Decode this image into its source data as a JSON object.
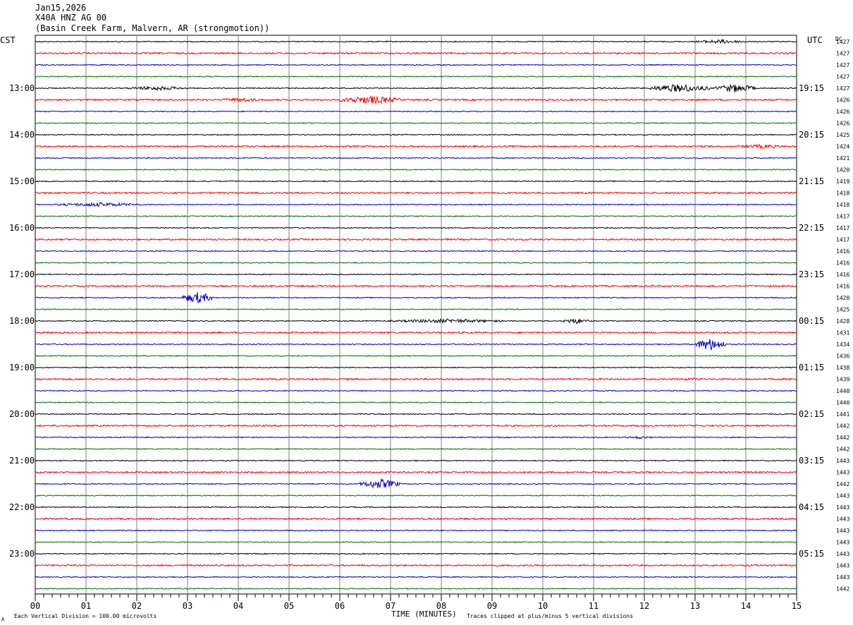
{
  "header": {
    "date": "Jan15,2026",
    "station": "X40A HNZ AG 00",
    "location": "(Basin Creek Farm, Malvern, AR (strongmotion))"
  },
  "chart_data": {
    "type": "line",
    "left_timezone": "CST",
    "right_timezone": "UTC",
    "dc_label": "DC",
    "xlabel": "TIME (MINUTES)",
    "xlim": [
      0,
      15
    ],
    "x_ticks": [
      "00",
      "01",
      "02",
      "03",
      "04",
      "05",
      "06",
      "07",
      "08",
      "09",
      "10",
      "11",
      "12",
      "13",
      "14",
      "15"
    ],
    "left_hour_labels": [
      "13:00",
      "14:00",
      "15:00",
      "16:00",
      "17:00",
      "18:00",
      "19:00",
      "20:00",
      "21:00",
      "22:00",
      "23:00"
    ],
    "right_hour_labels": [
      "19:15",
      "20:15",
      "21:15",
      "22:15",
      "23:15",
      "00:15",
      "01:15",
      "02:15",
      "03:15",
      "04:15",
      "05:15"
    ],
    "trace_colors": [
      "#000000",
      "#ff0000",
      "#0000cc",
      "#007000"
    ],
    "dc_values": [
      1427,
      1427,
      1427,
      1427,
      1427,
      1426,
      1426,
      1426,
      1425,
      1424,
      1421,
      1420,
      1419,
      1418,
      1418,
      1417,
      1417,
      1417,
      1416,
      1416,
      1416,
      1416,
      1420,
      1425,
      1428,
      1431,
      1434,
      1436,
      1438,
      1439,
      1440,
      1440,
      1441,
      1442,
      1442,
      1442,
      1443,
      1443,
      1442,
      1443,
      1443,
      1443,
      1443,
      1443,
      1443,
      1443,
      1443,
      1442
    ],
    "events": [
      {
        "trace": 0,
        "start_min": 13.0,
        "end_min": 14.0,
        "amp": 3
      },
      {
        "trace": 4,
        "start_min": 1.8,
        "end_min": 3.0,
        "amp": 3
      },
      {
        "trace": 4,
        "start_min": 12.1,
        "end_min": 13.3,
        "amp": 6
      },
      {
        "trace": 4,
        "start_min": 13.4,
        "end_min": 14.2,
        "amp": 6
      },
      {
        "trace": 5,
        "start_min": 3.6,
        "end_min": 4.5,
        "amp": 3
      },
      {
        "trace": 5,
        "start_min": 6.0,
        "end_min": 7.2,
        "amp": 6
      },
      {
        "trace": 9,
        "start_min": 13.8,
        "end_min": 14.8,
        "amp": 3
      },
      {
        "trace": 14,
        "start_min": 0.4,
        "end_min": 2.1,
        "amp": 3
      },
      {
        "trace": 22,
        "start_min": 2.9,
        "end_min": 3.5,
        "amp": 8
      },
      {
        "trace": 24,
        "start_min": 7.0,
        "end_min": 9.2,
        "amp": 3
      },
      {
        "trace": 24,
        "start_min": 10.4,
        "end_min": 10.9,
        "amp": 4
      },
      {
        "trace": 26,
        "start_min": 13.0,
        "end_min": 13.6,
        "amp": 9
      },
      {
        "trace": 29,
        "start_min": 12.6,
        "end_min": 13.3,
        "amp": 2
      },
      {
        "trace": 34,
        "start_min": 11.6,
        "end_min": 12.2,
        "amp": 2
      },
      {
        "trace": 38,
        "start_min": 6.4,
        "end_min": 7.2,
        "amp": 7
      }
    ],
    "footnote_left": "Each Vertical Division =  100.00 microvolts",
    "footnote_right": "Traces clipped at plus/minus 5 vertical divisions",
    "corner_mark": "A"
  }
}
